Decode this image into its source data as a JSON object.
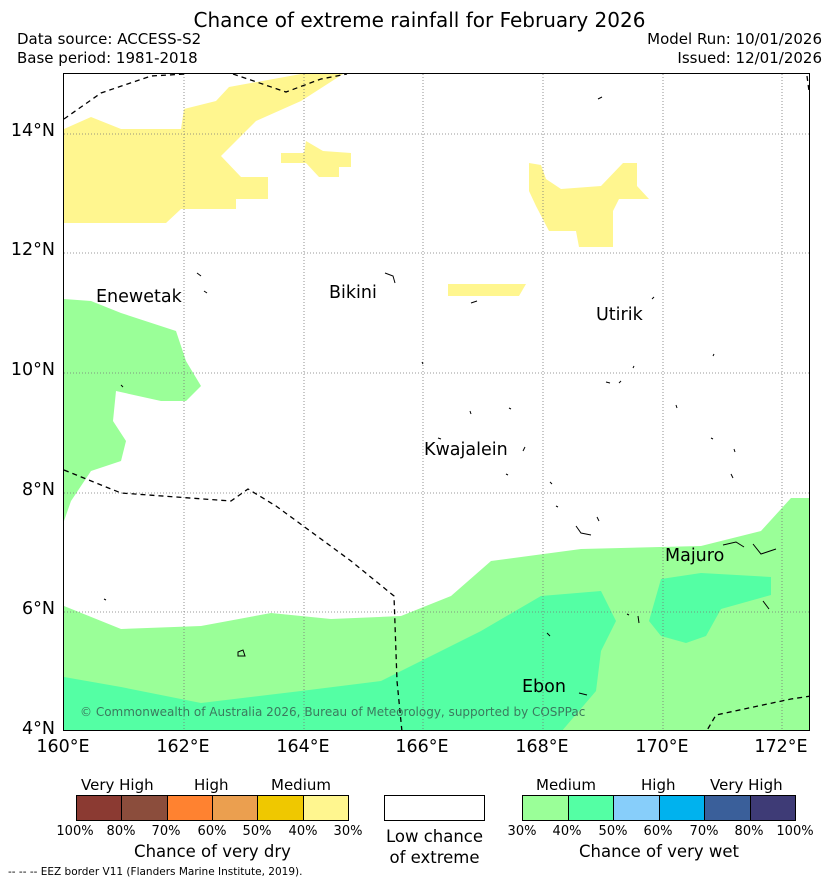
{
  "title": "Chance of extreme rainfall for February 2026",
  "header": {
    "data_source": "Data source: ACCESS-S2",
    "base_period": "Base period: 1981-2018",
    "model_run": "Model Run: 10/01/2026",
    "issued": "Issued: 12/01/2026"
  },
  "map": {
    "latitude_labels": [
      "14°N",
      "12°N",
      "10°N",
      "8°N",
      "6°N",
      "4°N"
    ],
    "longitude_labels": [
      "160°E",
      "162°E",
      "164°E",
      "166°E",
      "168°E",
      "170°E",
      "172°E"
    ],
    "places": {
      "enewetak": "Enewetak",
      "bikini": "Bikini",
      "utirik": "Utirik",
      "kwajalein": "Kwajalein",
      "majuro": "Majuro",
      "ebon": "Ebon"
    },
    "copyright": "© Commonwealth of Australia 2026, Bureau of Meteorology, supported by COSPPac",
    "colors": {
      "dry_medium_30_40": "#fff68f",
      "wet_medium_30_40": "#9aff98",
      "wet_medium_40_50": "#54ffa4",
      "eez_border": "#000000"
    }
  },
  "legend": {
    "dry": {
      "headers": [
        "Very High",
        "High",
        "Medium"
      ],
      "ticks": [
        "100%",
        "80%",
        "70%",
        "60%",
        "50%",
        "40%",
        "30%"
      ],
      "colors": [
        "#8b3a32",
        "#8b4d3c",
        "#ff8230",
        "#eb9f4f",
        "#efc800",
        "#fff68f"
      ],
      "title": "Chance of very dry"
    },
    "low": {
      "line1": "Low chance",
      "line2": "of extreme",
      "color": "#ffffff"
    },
    "wet": {
      "headers": [
        "Medium",
        "High",
        "Very High"
      ],
      "ticks": [
        "30%",
        "40%",
        "50%",
        "60%",
        "70%",
        "80%",
        "100%"
      ],
      "colors": [
        "#9aff98",
        "#54ffa4",
        "#87cefa",
        "#00b2ee",
        "#3a5f9a",
        "#3e3b76"
      ],
      "title": "Chance of very wet"
    }
  },
  "footer": "--  --  -- EEZ border V11 (Flanders Marine Institute, 2019)."
}
